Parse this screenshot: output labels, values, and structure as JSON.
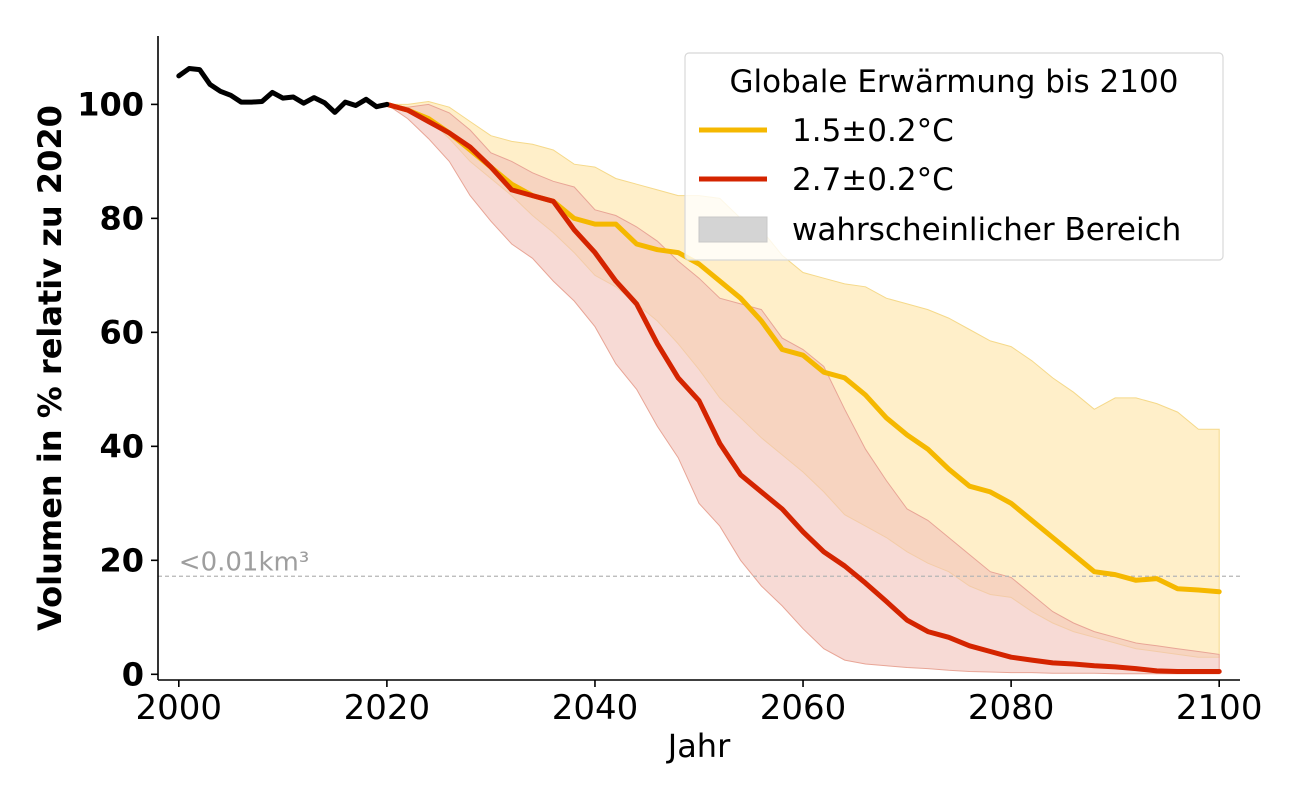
{
  "chart_data": {
    "type": "line",
    "title": "",
    "xlabel": "Jahr",
    "ylabel": "Volumen in % relativ zu 2020",
    "xlim": [
      1998,
      2102
    ],
    "ylim": [
      -1,
      112
    ],
    "xticks": [
      2000,
      2020,
      2040,
      2060,
      2080,
      2100
    ],
    "yticks": [
      0,
      20,
      40,
      60,
      80,
      100
    ],
    "grid": false,
    "legend": {
      "title": "Globale Erwärmung bis 2100",
      "placement": "top-right",
      "entries": [
        "1.5±0.2°C",
        "2.7±0.2°C",
        "wahrscheinlicher Bereich"
      ]
    },
    "threshold": {
      "y": 17.2,
      "label": "<0.01km³",
      "color": "#b5b5b5"
    },
    "colors": {
      "historical": "#000000",
      "scenario_1_5": "#f5b800",
      "scenario_2_7": "#d42400",
      "band_1_5": "#ffecc0",
      "band_2_7": "#f2c4bc",
      "band_overlap": "#f2c4a0",
      "legend_band": "#d4d4d4"
    },
    "historical": {
      "x": [
        2000,
        2001,
        2002,
        2003,
        2004,
        2005,
        2006,
        2007,
        2008,
        2009,
        2010,
        2011,
        2012,
        2013,
        2014,
        2015,
        2016,
        2017,
        2018,
        2019,
        2020
      ],
      "y": [
        105,
        106.3,
        106.1,
        103.5,
        102.3,
        101.6,
        100.4,
        100.4,
        100.5,
        102.1,
        101.1,
        101.3,
        100.2,
        101.2,
        100.3,
        98.6,
        100.4,
        99.8,
        100.9,
        99.6,
        100
      ]
    },
    "series": [
      {
        "name": "1.5±0.2°C",
        "color": "#f5b800",
        "x": [
          2020,
          2022,
          2024,
          2026,
          2028,
          2030,
          2032,
          2034,
          2036,
          2038,
          2040,
          2042,
          2044,
          2046,
          2048,
          2050,
          2052,
          2054,
          2056,
          2058,
          2060,
          2062,
          2064,
          2066,
          2068,
          2070,
          2072,
          2074,
          2076,
          2078,
          2080,
          2082,
          2084,
          2086,
          2088,
          2090,
          2092,
          2094,
          2096,
          2098,
          2100
        ],
        "y": [
          100,
          99,
          97.5,
          95,
          92,
          89,
          86,
          84,
          83,
          80,
          79,
          79,
          75.5,
          74.5,
          74,
          72,
          69,
          66,
          62,
          57,
          56,
          53,
          52,
          49,
          45,
          42,
          39.5,
          36,
          33,
          32,
          30,
          27,
          24,
          21,
          18,
          17.5,
          16.5,
          16.8,
          15,
          14.8,
          14.5
        ],
        "lower": [
          100,
          99.5,
          97.5,
          94,
          90,
          87,
          84,
          80.5,
          77.5,
          74,
          70,
          68,
          65,
          62,
          58,
          53.5,
          48.5,
          45,
          41.5,
          38.5,
          35.5,
          32,
          28,
          26,
          24,
          21.5,
          19.5,
          18,
          15.5,
          14,
          13.5,
          11,
          9,
          7.5,
          6.5,
          5.5,
          4.5,
          4,
          3.5,
          3,
          3
        ],
        "upper": [
          100,
          100,
          100.5,
          99.5,
          97,
          94.5,
          93.5,
          93,
          92,
          89.5,
          89,
          87,
          86,
          85,
          84,
          84,
          83.5,
          80,
          78,
          73.5,
          70.5,
          69.5,
          68.5,
          68,
          66,
          65,
          64,
          62.5,
          60.5,
          58.5,
          57.5,
          55,
          52,
          49.5,
          46.5,
          48.5,
          48.5,
          47.5,
          46,
          43,
          43
        ]
      },
      {
        "name": "2.7±0.2°C",
        "color": "#d42400",
        "x": [
          2020,
          2022,
          2024,
          2026,
          2028,
          2030,
          2032,
          2034,
          2036,
          2038,
          2040,
          2042,
          2044,
          2046,
          2048,
          2050,
          2052,
          2054,
          2056,
          2058,
          2060,
          2062,
          2064,
          2066,
          2068,
          2070,
          2072,
          2074,
          2076,
          2078,
          2080,
          2082,
          2084,
          2086,
          2088,
          2090,
          2092,
          2094,
          2096,
          2098,
          2100
        ],
        "y": [
          100,
          99,
          97,
          95,
          92.5,
          89,
          85,
          84,
          83,
          78,
          74,
          69,
          65,
          58,
          52,
          48,
          40.5,
          35,
          32,
          29,
          25,
          21.5,
          19,
          16,
          12.8,
          9.5,
          7.5,
          6.5,
          5,
          4,
          3,
          2.5,
          2,
          1.8,
          1.5,
          1.3,
          1,
          0.6,
          0.5,
          0.5,
          0.5
        ],
        "lower": [
          100,
          97.5,
          94,
          90,
          84,
          79.5,
          75.5,
          73,
          69,
          65.5,
          61,
          54.5,
          50,
          43.5,
          38,
          30,
          26,
          20,
          15.5,
          12,
          8,
          4.5,
          2.5,
          1.8,
          1.5,
          1.2,
          1,
          0.7,
          0.5,
          0.4,
          0.3,
          0.3,
          0.2,
          0.2,
          0.2,
          0.1,
          0.1,
          0.1,
          0.1,
          0.1,
          0.1
        ],
        "upper": [
          100,
          99.5,
          100,
          98.5,
          95.5,
          91.5,
          90,
          88,
          86.5,
          85.5,
          81.5,
          80.5,
          78.5,
          76,
          72.5,
          69.5,
          66,
          65,
          64,
          59,
          57,
          54,
          46.5,
          39.5,
          34,
          29,
          27,
          24,
          21,
          18,
          17,
          14,
          11,
          9,
          7.5,
          6.5,
          5.5,
          5,
          4.5,
          4,
          3.5
        ]
      }
    ]
  }
}
